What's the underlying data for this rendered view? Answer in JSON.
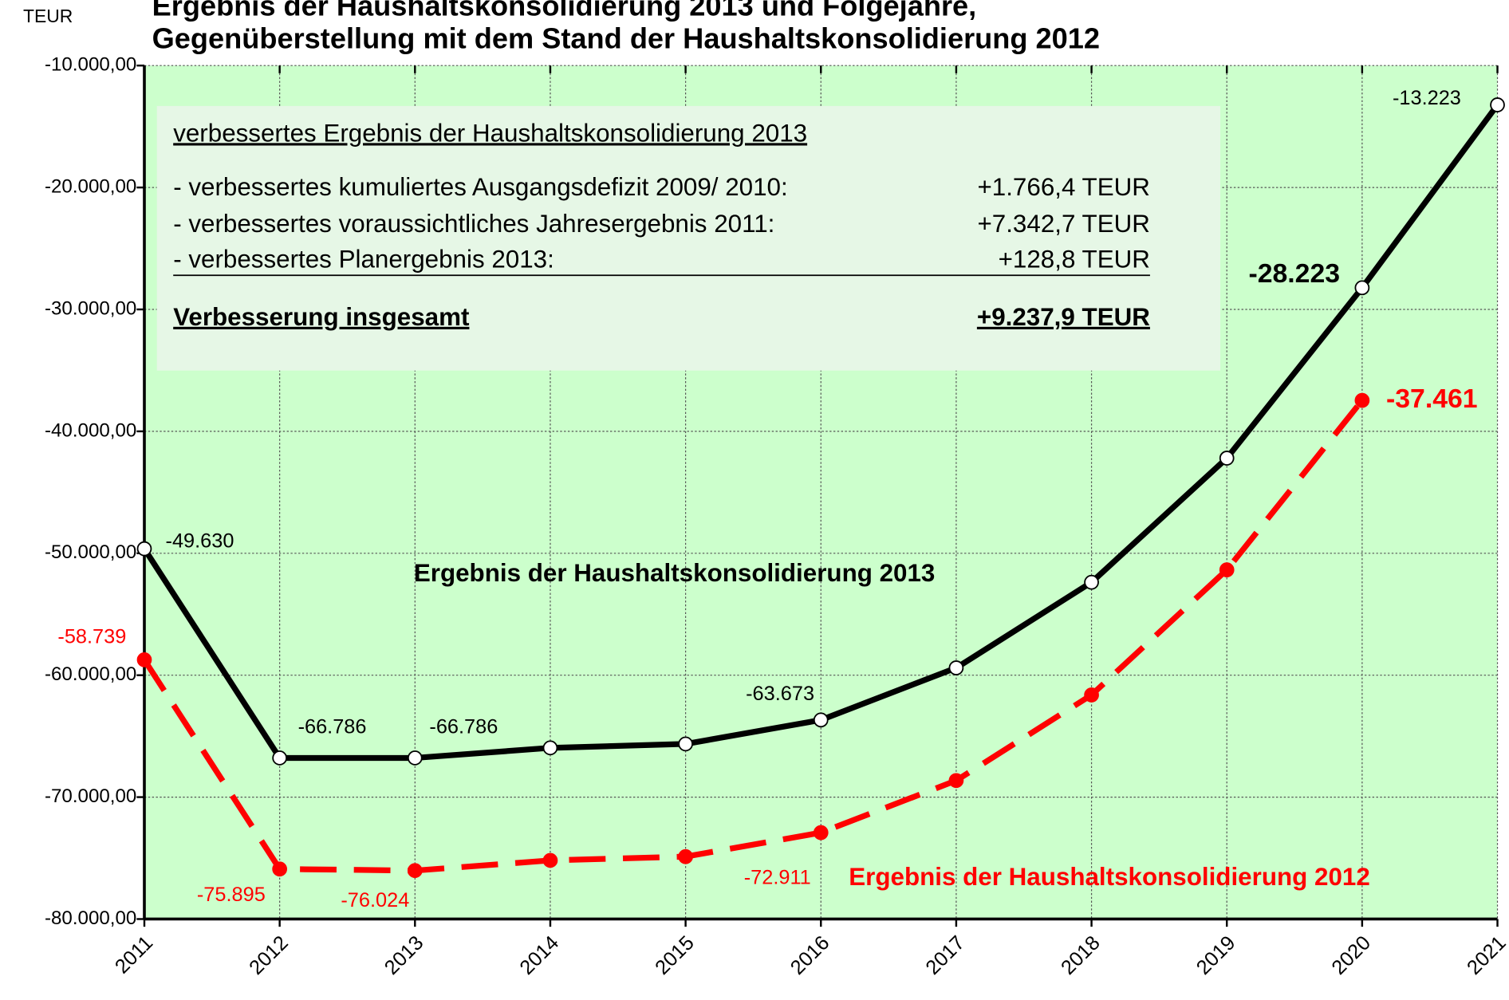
{
  "chart_data": {
    "type": "line",
    "title": [
      "Ergebnis der Haushaltskonsolidierung  2013 und Folgejahre,",
      "Gegenüberstellung mit dem Stand der Haushaltskonsolidierung 2012"
    ],
    "y_unit": "TEUR",
    "categories": [
      "2011",
      "2012",
      "2013",
      "2014",
      "2015",
      "2016",
      "2017",
      "2018",
      "2019",
      "2020",
      "2021"
    ],
    "ylim": [
      -80000,
      -10000
    ],
    "yticks": [
      {
        "value": -80000,
        "label": "-80.000,00"
      },
      {
        "value": -70000,
        "label": "-70.000,00"
      },
      {
        "value": -60000,
        "label": "-60.000,00"
      },
      {
        "value": -50000,
        "label": "-50.000,00"
      },
      {
        "value": -40000,
        "label": "-40.000,00"
      },
      {
        "value": -30000,
        "label": "-30.000,00"
      },
      {
        "value": -20000,
        "label": "-20.000,00"
      },
      {
        "value": -10000,
        "label": "-10.000,00"
      }
    ],
    "grid": true,
    "series": [
      {
        "name": "Ergebnis der Haushaltskonsolidierung 2013",
        "color": "#000000",
        "dashed": false,
        "values": [
          -49630,
          -66786,
          -66786,
          -65960,
          -65640,
          -63673,
          -59400,
          -52380,
          -42200,
          -28223,
          -13223
        ],
        "value_labels": [
          "-49.630",
          "-66.786",
          "-66.786",
          null,
          null,
          "-63.673",
          null,
          null,
          null,
          "-28.223",
          "-13.223"
        ]
      },
      {
        "name": "Ergebnis der Haushaltskonsolidierung 2012",
        "color": "#ff0000",
        "dashed": true,
        "values": [
          -58739,
          -75895,
          -76024,
          -75190,
          -74880,
          -72911,
          -68640,
          -61620,
          -51360,
          -37461,
          null
        ],
        "value_labels": [
          "-58.739",
          "-75.895",
          "-76.024",
          null,
          null,
          "-72.911",
          null,
          null,
          null,
          "-37.461",
          null
        ]
      }
    ],
    "annotation_box": {
      "heading": "verbessertes Ergebnis der Haushaltskonsolidierung 2013",
      "rows": [
        {
          "label": "- verbessertes kumuliertes Ausgangsdefizit 2009/ 2010:",
          "value": "+1.766,4 TEUR"
        },
        {
          "label": "- verbessertes voraussichtliches Jahresergebnis 2011:",
          "value": "+7.342,7 TEUR"
        },
        {
          "label": "- verbessertes Planergebnis 2013:",
          "value": "+128,8 TEUR"
        }
      ],
      "total": {
        "label": "Verbesserung insgesamt",
        "value": "+9.237,9 TEUR"
      }
    }
  }
}
